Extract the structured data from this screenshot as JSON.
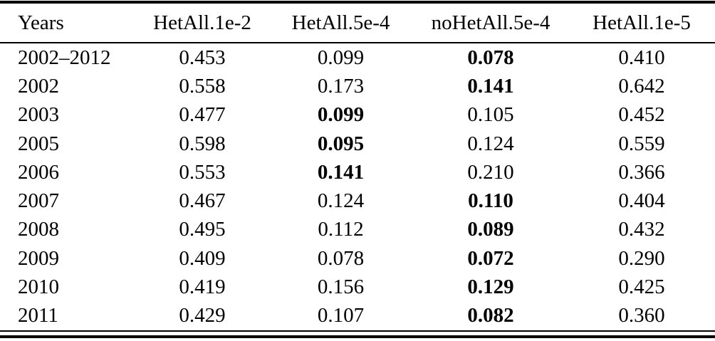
{
  "table": {
    "columns": [
      "Years",
      "HetAll.1e-2",
      "HetAll.5e-4",
      "noHetAll.5e-4",
      "HetAll.1e-5"
    ],
    "rows": [
      {
        "year": "2002–2012",
        "values": [
          "0.453",
          "0.099",
          "0.078",
          "0.410"
        ],
        "bold_value_index": 2
      },
      {
        "year": "2002",
        "values": [
          "0.558",
          "0.173",
          "0.141",
          "0.642"
        ],
        "bold_value_index": 2
      },
      {
        "year": "2003",
        "values": [
          "0.477",
          "0.099",
          "0.105",
          "0.452"
        ],
        "bold_value_index": 1
      },
      {
        "year": "2005",
        "values": [
          "0.598",
          "0.095",
          "0.124",
          "0.559"
        ],
        "bold_value_index": 1
      },
      {
        "year": "2006",
        "values": [
          "0.553",
          "0.141",
          "0.210",
          "0.366"
        ],
        "bold_value_index": 1
      },
      {
        "year": "2007",
        "values": [
          "0.467",
          "0.124",
          "0.110",
          "0.404"
        ],
        "bold_value_index": 2
      },
      {
        "year": "2008",
        "values": [
          "0.495",
          "0.112",
          "0.089",
          "0.432"
        ],
        "bold_value_index": 2
      },
      {
        "year": "2009",
        "values": [
          "0.409",
          "0.078",
          "0.072",
          "0.290"
        ],
        "bold_value_index": 2
      },
      {
        "year": "2010",
        "values": [
          "0.419",
          "0.156",
          "0.129",
          "0.425"
        ],
        "bold_value_index": 2
      },
      {
        "year": "2011",
        "values": [
          "0.429",
          "0.107",
          "0.082",
          "0.360"
        ],
        "bold_value_index": 2
      }
    ]
  },
  "colors": {
    "background": "#ffffff",
    "text": "#000000",
    "rule": "#000000"
  }
}
